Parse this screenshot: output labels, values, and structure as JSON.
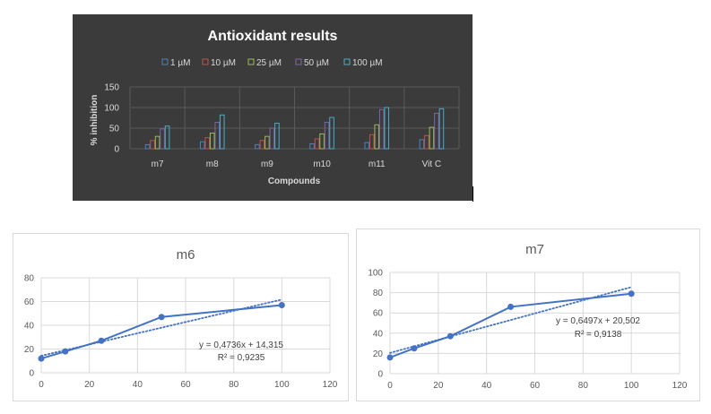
{
  "chart_data": [
    {
      "type": "bar",
      "title": "Antioxidant results",
      "xlabel": "Compounds",
      "ylabel": "% inhibition",
      "categories": [
        "m7",
        "m8",
        "m9",
        "m10",
        "m11",
        "Vit C"
      ],
      "ylim": [
        0,
        150
      ],
      "yticks": [
        0,
        50,
        100,
        150
      ],
      "grid": true,
      "legend": "top",
      "series": [
        {
          "name": "1 µM",
          "color": "#4f81bd",
          "values": [
            10,
            17,
            10,
            12,
            15,
            22
          ]
        },
        {
          "name": "10 µM",
          "color": "#c0504d",
          "values": [
            20,
            27,
            20,
            24,
            34,
            32
          ]
        },
        {
          "name": "25 µM",
          "color": "#9bbb59",
          "values": [
            30,
            38,
            30,
            36,
            58,
            52
          ]
        },
        {
          "name": "50 µM",
          "color": "#8064a2",
          "values": [
            48,
            64,
            50,
            64,
            95,
            86
          ]
        },
        {
          "name": "100 µM",
          "color": "#4bacc6",
          "values": [
            55,
            82,
            62,
            76,
            100,
            97
          ]
        }
      ]
    },
    {
      "type": "scatter",
      "title": "m6",
      "x": [
        0,
        10,
        25,
        50,
        100
      ],
      "y": [
        12,
        18,
        27,
        47,
        57
      ],
      "xlim": [
        0,
        120
      ],
      "ylim": [
        0,
        80
      ],
      "xticks": [
        0,
        20,
        40,
        60,
        80,
        100,
        120
      ],
      "yticks": [
        0,
        20,
        40,
        60,
        80
      ],
      "grid": true,
      "trendline": {
        "slope": 0.4736,
        "intercept": 14.315
      },
      "annotation": [
        "y = 0,4736x + 14,315",
        "R² = 0,9235"
      ],
      "color": "#4472c4"
    },
    {
      "type": "scatter",
      "title": "m7",
      "x": [
        0,
        10,
        25,
        50,
        100
      ],
      "y": [
        16,
        25,
        37,
        66,
        79
      ],
      "xlim": [
        0,
        120
      ],
      "ylim": [
        0,
        100
      ],
      "xticks": [
        0,
        20,
        40,
        60,
        80,
        100,
        120
      ],
      "yticks": [
        0,
        20,
        40,
        60,
        80,
        100
      ],
      "grid": true,
      "trendline": {
        "slope": 0.6497,
        "intercept": 20.502
      },
      "annotation": [
        "y = 0,6497x + 20,502",
        "R² = 0,9138"
      ],
      "color": "#4472c4"
    }
  ]
}
